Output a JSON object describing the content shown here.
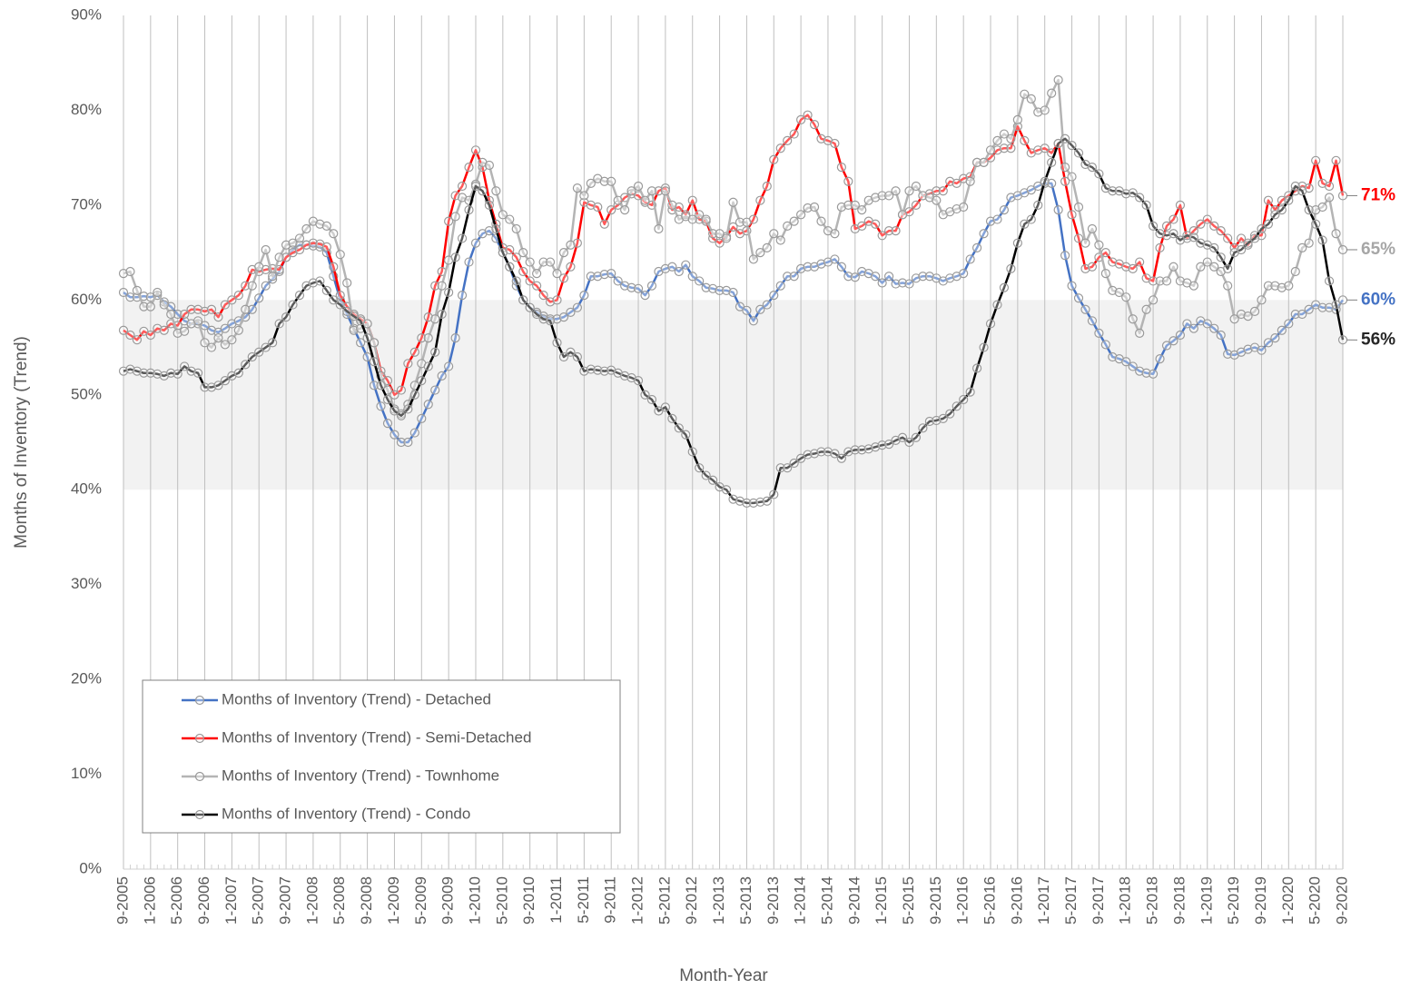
{
  "chart_data": {
    "type": "line",
    "x_label": "Month-Year",
    "y_label": "Months of Inventory (Trend)",
    "categories": [
      "9-2005",
      null,
      null,
      null,
      "1-2006",
      null,
      null,
      null,
      "5-2006",
      null,
      null,
      null,
      "9-2006",
      null,
      null,
      null,
      "1-2007",
      null,
      null,
      null,
      "5-2007",
      null,
      null,
      null,
      "9-2007",
      null,
      null,
      null,
      "1-2008",
      null,
      null,
      null,
      "5-2008",
      null,
      null,
      null,
      "9-2008",
      null,
      null,
      null,
      "1-2009",
      null,
      null,
      null,
      "5-2009",
      null,
      null,
      null,
      "9-2009",
      null,
      null,
      null,
      "1-2010",
      null,
      null,
      null,
      "5-2010",
      null,
      null,
      null,
      "9-2010",
      null,
      null,
      null,
      "1-2011",
      null,
      null,
      null,
      "5-2011",
      null,
      null,
      null,
      "9-2011",
      null,
      null,
      null,
      "1-2012",
      null,
      null,
      null,
      "5-2012",
      null,
      null,
      null,
      "9-2012",
      null,
      null,
      null,
      "1-2013",
      null,
      null,
      null,
      "5-2013",
      null,
      null,
      null,
      "9-2013",
      null,
      null,
      null,
      "1-2014",
      null,
      null,
      null,
      "5-2014",
      null,
      null,
      null,
      "9-2014",
      null,
      null,
      null,
      "1-2015",
      null,
      null,
      null,
      "5-2015",
      null,
      null,
      null,
      "9-2015",
      null,
      null,
      null,
      "1-2016",
      null,
      null,
      null,
      "5-2016",
      null,
      null,
      null,
      "9-2016",
      null,
      null,
      null,
      "1-2017",
      null,
      null,
      null,
      "5-2017",
      null,
      null,
      null,
      "9-2017",
      null,
      null,
      null,
      "1-2018",
      null,
      null,
      null,
      "5-2018",
      null,
      null,
      null,
      "9-2018",
      null,
      null,
      null,
      "1-2019",
      null,
      null,
      null,
      "5-2019",
      null,
      null,
      null,
      "9-2019",
      null,
      null,
      null,
      "1-2020",
      null,
      null,
      null,
      "5-2020",
      null,
      null,
      null,
      "9-2020"
    ],
    "series": [
      {
        "name": "Months of Inventory (Trend) - Detached",
        "color": "#4472c4",
        "end_label": "60%",
        "values": [
          60.8,
          60.3,
          60.3,
          60.4,
          60.3,
          60.5,
          59.8,
          59.3,
          58.5,
          57.8,
          57.5,
          57.5,
          57.3,
          56.8,
          56.6,
          57.0,
          57.5,
          57.8,
          58.2,
          59.0,
          60.2,
          61.5,
          62.2,
          63.0,
          64.5,
          65.3,
          65.8,
          65.8,
          65.7,
          65.6,
          65.0,
          62.5,
          60.0,
          58.5,
          57.0,
          55.5,
          54.0,
          51.0,
          48.8,
          47.0,
          45.8,
          45.0,
          45.0,
          46.0,
          47.5,
          49.0,
          50.5,
          52.0,
          53.0,
          56.0,
          60.5,
          64.0,
          66.0,
          67.0,
          67.3,
          66.5,
          65.0,
          63.5,
          61.5,
          60.0,
          59.2,
          58.7,
          58.3,
          58.0,
          58.0,
          58.2,
          58.7,
          59.2,
          60.5,
          62.5,
          62.5,
          62.7,
          62.8,
          62.0,
          61.5,
          61.3,
          61.2,
          60.5,
          61.5,
          63.0,
          63.3,
          63.5,
          63.0,
          63.7,
          62.5,
          62.0,
          61.3,
          61.2,
          61.0,
          61.0,
          60.8,
          59.3,
          58.9,
          57.8,
          59.0,
          59.5,
          60.5,
          61.5,
          62.5,
          62.5,
          63.3,
          63.5,
          63.5,
          63.8,
          64.0,
          64.3,
          63.5,
          62.5,
          62.4,
          63.0,
          62.8,
          62.5,
          61.8,
          62.5,
          61.7,
          61.8,
          61.7,
          62.3,
          62.5,
          62.5,
          62.3,
          62.0,
          62.3,
          62.5,
          62.8,
          64.3,
          65.5,
          67.0,
          68.3,
          68.5,
          69.5,
          70.8,
          71.0,
          71.3,
          71.6,
          72.0,
          72.3,
          72.3,
          69.5,
          64.7,
          61.5,
          60.2,
          59.0,
          57.8,
          56.5,
          55.3,
          54.0,
          53.8,
          53.5,
          53.0,
          52.5,
          52.3,
          52.2,
          53.8,
          55.2,
          55.7,
          56.3,
          57.5,
          57.0,
          57.8,
          57.5,
          57.0,
          56.3,
          54.3,
          54.2,
          54.5,
          54.8,
          55.0,
          54.7,
          55.5,
          56.0,
          56.8,
          57.5,
          58.5,
          58.5,
          59.0,
          59.5,
          59.2,
          59.2,
          59.0,
          60.0
        ]
      },
      {
        "name": "Months of Inventory (Trend) - Semi-Detached",
        "color": "#ff0000",
        "end_label": "71%",
        "values": [
          56.8,
          56.3,
          55.8,
          56.7,
          56.3,
          57.0,
          56.8,
          57.5,
          57.3,
          58.5,
          59.0,
          59.0,
          58.8,
          59.0,
          58.2,
          59.5,
          60.0,
          60.5,
          61.5,
          63.2,
          63.0,
          63.2,
          63.3,
          63.2,
          64.5,
          65.0,
          65.3,
          65.8,
          66.0,
          65.9,
          65.6,
          63.5,
          60.5,
          59.3,
          58.5,
          58.0,
          57.5,
          55.5,
          52.5,
          51.5,
          50.0,
          50.5,
          53.3,
          54.5,
          56.0,
          58.2,
          61.5,
          63.0,
          68.3,
          71.0,
          72.0,
          74.0,
          75.8,
          74.0,
          70.5,
          68.0,
          65.5,
          65.3,
          64.5,
          63.0,
          62.0,
          61.5,
          60.5,
          59.8,
          60.0,
          62.3,
          63.5,
          66.0,
          70.3,
          70.0,
          69.8,
          68.0,
          69.5,
          70.0,
          70.8,
          71.2,
          71.0,
          70.3,
          70.0,
          71.5,
          71.8,
          69.5,
          69.8,
          69.0,
          70.5,
          68.5,
          68.3,
          66.5,
          66.0,
          66.7,
          67.7,
          67.0,
          67.3,
          68.5,
          70.5,
          72.0,
          74.8,
          76.0,
          76.8,
          77.5,
          79.0,
          79.5,
          78.5,
          77.0,
          76.8,
          76.5,
          74.0,
          72.5,
          67.5,
          67.8,
          68.3,
          68.0,
          66.8,
          67.3,
          67.3,
          69.0,
          69.3,
          70.0,
          71.0,
          71.2,
          71.5,
          71.5,
          72.5,
          72.3,
          72.8,
          73.0,
          74.5,
          74.5,
          75.0,
          75.8,
          76.0,
          76.0,
          78.3,
          76.8,
          75.5,
          75.8,
          76.0,
          75.5,
          76.5,
          72.5,
          69.0,
          66.5,
          63.3,
          63.5,
          64.5,
          65.0,
          64.0,
          63.8,
          63.5,
          63.3,
          64.0,
          62.3,
          62.0,
          65.5,
          67.8,
          68.5,
          70.0,
          66.5,
          67.3,
          68.0,
          68.5,
          67.8,
          67.3,
          66.5,
          65.5,
          66.5,
          65.8,
          66.8,
          66.8,
          70.5,
          69.5,
          70.5,
          71.0,
          71.5,
          72.0,
          71.8,
          74.7,
          72.3,
          72.0,
          74.7,
          71.0
        ]
      },
      {
        "name": "Months of Inventory (Trend) - Townhome",
        "color": "#b4b4b4",
        "end_label": "65%",
        "values": [
          62.8,
          63.0,
          61.0,
          59.3,
          59.3,
          60.8,
          59.5,
          58.5,
          56.5,
          56.7,
          57.5,
          57.8,
          55.5,
          55.0,
          56.0,
          55.3,
          55.8,
          56.8,
          59.0,
          61.5,
          63.5,
          65.3,
          62.5,
          64.5,
          65.8,
          66.0,
          66.5,
          67.5,
          68.3,
          68.0,
          67.8,
          67.0,
          64.8,
          61.8,
          56.8,
          57.0,
          57.5,
          55.5,
          52.0,
          50.5,
          48.5,
          48.0,
          49.0,
          51.0,
          53.3,
          56.0,
          58.0,
          61.5,
          64.2,
          68.8,
          70.8,
          70.5,
          72.2,
          74.5,
          74.2,
          71.5,
          69.0,
          68.5,
          67.5,
          65.0,
          64.0,
          62.8,
          64.0,
          64.0,
          62.8,
          65.0,
          65.8,
          71.8,
          71.0,
          72.3,
          72.8,
          72.5,
          72.5,
          70.5,
          69.5,
          71.5,
          72.0,
          70.5,
          71.5,
          67.5,
          71.5,
          70.0,
          68.5,
          68.8,
          68.5,
          69.0,
          68.5,
          67.0,
          67.0,
          66.5,
          70.3,
          68.2,
          68.2,
          64.3,
          65.0,
          65.5,
          67.0,
          66.3,
          67.8,
          68.3,
          69.0,
          69.7,
          69.8,
          68.3,
          67.3,
          67.0,
          69.8,
          70.0,
          70.0,
          69.5,
          70.5,
          70.8,
          71.0,
          71.0,
          71.5,
          69.0,
          71.5,
          72.0,
          71.0,
          70.8,
          70.5,
          69.0,
          69.3,
          69.6,
          69.8,
          72.5,
          74.5,
          74.5,
          75.8,
          76.8,
          77.5,
          77.0,
          79.0,
          81.7,
          81.2,
          79.8,
          80.0,
          81.8,
          83.2,
          74.0,
          73.0,
          69.8,
          66.0,
          67.5,
          65.8,
          62.8,
          61.0,
          60.8,
          60.3,
          58.0,
          56.5,
          59.0,
          60.0,
          62.0,
          62.0,
          63.5,
          62.0,
          61.8,
          61.5,
          63.5,
          64.0,
          63.5,
          63.0,
          61.5,
          58.0,
          58.5,
          58.3,
          58.8,
          60.0,
          61.5,
          61.5,
          61.3,
          61.5,
          63.0,
          65.5,
          66.0,
          69.5,
          69.8,
          70.8,
          67.0,
          65.3
        ]
      },
      {
        "name": "Months of Inventory (Trend) - Condo",
        "color": "#000000",
        "end_label": "56%",
        "values": [
          52.5,
          52.7,
          52.5,
          52.3,
          52.3,
          52.2,
          52.0,
          52.3,
          52.2,
          53.0,
          52.5,
          52.3,
          50.8,
          50.8,
          51.0,
          51.5,
          52.0,
          52.3,
          53.2,
          54.0,
          54.5,
          55.0,
          55.5,
          57.5,
          58.2,
          59.5,
          60.5,
          61.5,
          61.8,
          62.0,
          61.0,
          60.0,
          59.5,
          58.8,
          58.3,
          57.8,
          56.0,
          53.5,
          51.0,
          49.5,
          48.3,
          47.8,
          48.5,
          50.0,
          51.5,
          53.0,
          54.5,
          58.5,
          60.8,
          64.5,
          66.5,
          69.5,
          72.0,
          71.5,
          70.0,
          67.5,
          65.0,
          63.5,
          62.0,
          60.0,
          59.2,
          58.5,
          58.0,
          57.8,
          55.5,
          54.0,
          54.5,
          54.0,
          52.5,
          52.7,
          52.6,
          52.5,
          52.6,
          52.3,
          52.0,
          51.8,
          51.5,
          50.0,
          49.5,
          48.3,
          48.7,
          47.5,
          46.5,
          45.8,
          44.0,
          42.3,
          41.5,
          41.0,
          40.3,
          40.0,
          39.0,
          38.8,
          38.6,
          38.6,
          38.7,
          38.8,
          39.5,
          42.3,
          42.3,
          42.8,
          43.3,
          43.7,
          43.8,
          44.0,
          44.0,
          43.8,
          43.3,
          44.0,
          44.2,
          44.2,
          44.3,
          44.5,
          44.7,
          44.8,
          45.2,
          45.5,
          45.0,
          45.5,
          46.5,
          47.2,
          47.3,
          47.5,
          48.0,
          48.8,
          49.5,
          50.3,
          52.8,
          55.0,
          57.5,
          59.5,
          61.3,
          63.3,
          66.0,
          68.0,
          68.5,
          70.0,
          72.5,
          74.5,
          76.5,
          77.0,
          76.3,
          75.5,
          74.3,
          74.0,
          73.3,
          71.8,
          71.5,
          71.5,
          71.2,
          71.3,
          70.8,
          70.0,
          67.8,
          67.0,
          66.8,
          67.0,
          66.3,
          66.8,
          66.6,
          66.0,
          65.8,
          65.5,
          64.5,
          63.3,
          65.0,
          65.3,
          66.0,
          66.5,
          67.5,
          68.0,
          69.0,
          69.5,
          70.5,
          72.0,
          71.5,
          69.5,
          68.0,
          66.3,
          62.0,
          59.5,
          55.8
        ]
      }
    ],
    "end_label_colors": [
      "#4472c4",
      "#ff0000",
      "#a6a6a6",
      "#262626"
    ],
    "marker_color": "#9a9a9a",
    "ylim": [
      0,
      90
    ],
    "yticks": [
      {
        "value": 0,
        "label": "0%"
      },
      {
        "value": 10,
        "label": "10%"
      },
      {
        "value": 20,
        "label": "20%"
      },
      {
        "value": 30,
        "label": "30%"
      },
      {
        "value": 40,
        "label": "40%"
      },
      {
        "value": 50,
        "label": "50%"
      },
      {
        "value": 60,
        "label": "60%"
      },
      {
        "value": 70,
        "label": "70%"
      },
      {
        "value": 80,
        "label": "80%"
      },
      {
        "value": 90,
        "label": "90%"
      }
    ],
    "shaded_band": {
      "from": 40,
      "to": 60,
      "color": "#f2f2f2"
    },
    "x_grid": true,
    "legend": "bottom-left"
  }
}
